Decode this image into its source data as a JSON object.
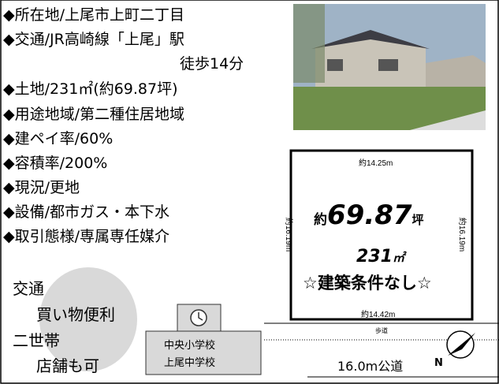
{
  "items": [
    "◆所在地/上尾市上町二丁目",
    "◆交通/JR高崎線「上尾」駅",
    "徒歩14分",
    "◆土地/231㎡(約69.87坪)",
    "◆用途地域/第二種住居地域",
    "◆建ペイ率/60%",
    "◆容積率/200%",
    "◆現況/更地",
    "◆設備/都市ガス・本下水",
    "◆取引態様/専属専任媒介"
  ],
  "features": [
    "交通",
    "買い物便利",
    "二世帯",
    "店舗も可"
  ],
  "school": [
    "中央小学校",
    "上尾中学校"
  ],
  "plot": {
    "top": "約14.25m",
    "left": "約16.19m",
    "right": "約16.19m",
    "bottom": "約14.42m",
    "area_prefix": "約",
    "area": "69.87",
    "area_unit": "坪",
    "sqm": "231",
    "sqm_unit": "㎡",
    "note": "☆建築条件なし☆"
  },
  "road": {
    "sidewalk": "歩道",
    "name": "16.0m公道",
    "north": "N"
  }
}
